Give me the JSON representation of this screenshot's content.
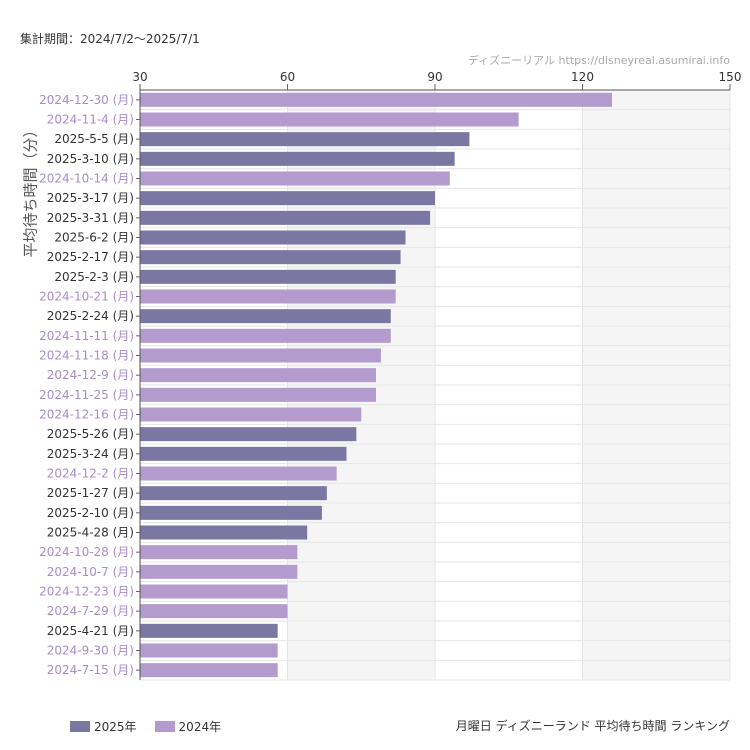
{
  "header": {
    "period": "集計期間：2024/7/2〜2025/7/1",
    "source": "ディズニーリアル https://disneyreal.asumirai.info"
  },
  "colors": {
    "2025": "#7b77a3",
    "2024": "#b39ccd"
  },
  "chart_data": {
    "type": "bar",
    "orientation": "horizontal",
    "ylabel": "平均待ち時間（分）",
    "xlim": [
      30,
      150
    ],
    "xticks": [
      30,
      60,
      90,
      120,
      150
    ],
    "legend_position": "bottom-left",
    "categories": [
      "2024-12-30 (月)",
      "2024-11-4 (月)",
      "2025-5-5 (月)",
      "2025-3-10 (月)",
      "2024-10-14 (月)",
      "2025-3-17 (月)",
      "2025-3-31 (月)",
      "2025-6-2 (月)",
      "2025-2-17 (月)",
      "2025-2-3 (月)",
      "2024-10-21 (月)",
      "2025-2-24 (月)",
      "2024-11-11 (月)",
      "2024-11-18 (月)",
      "2024-12-9 (月)",
      "2024-11-25 (月)",
      "2024-12-16 (月)",
      "2025-5-26 (月)",
      "2025-3-24 (月)",
      "2024-12-2 (月)",
      "2025-1-27 (月)",
      "2025-2-10 (月)",
      "2025-4-28 (月)",
      "2024-10-28 (月)",
      "2024-10-7 (月)",
      "2024-12-23 (月)",
      "2024-7-29 (月)",
      "2025-4-21 (月)",
      "2024-9-30 (月)",
      "2024-7-15 (月)"
    ],
    "values": [
      126,
      107,
      97,
      94,
      93,
      90,
      89,
      84,
      83,
      82,
      82,
      81,
      81,
      79,
      78,
      78,
      75,
      74,
      72,
      70,
      68,
      67,
      64,
      62,
      62,
      60,
      60,
      58,
      58,
      58
    ],
    "years": [
      "2024",
      "2024",
      "2025",
      "2025",
      "2024",
      "2025",
      "2025",
      "2025",
      "2025",
      "2025",
      "2024",
      "2025",
      "2024",
      "2024",
      "2024",
      "2024",
      "2024",
      "2025",
      "2025",
      "2024",
      "2025",
      "2025",
      "2025",
      "2024",
      "2024",
      "2024",
      "2024",
      "2025",
      "2024",
      "2024"
    ],
    "series": [
      {
        "name": "2025年",
        "key": "2025"
      },
      {
        "name": "2024年",
        "key": "2024"
      }
    ],
    "title": "月曜日 ディズニーランド 平均待ち時間 ランキング"
  }
}
